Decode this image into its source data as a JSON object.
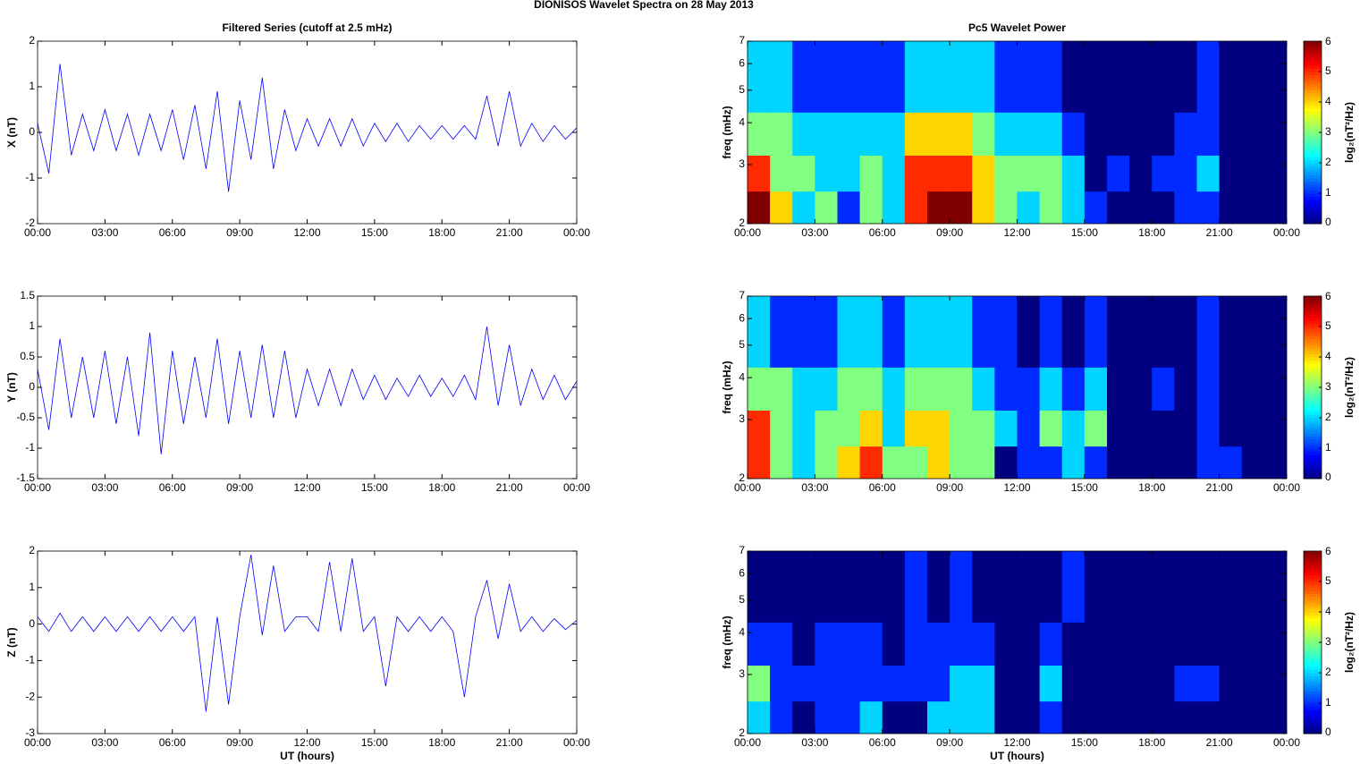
{
  "title": "DIONISOS Wavelet Spectra on 28 May      2013",
  "chart_data": [
    {
      "type": "line",
      "title": "Filtered Series (cutoff at 2.5 mHz)",
      "ylabel": "X (nT)",
      "color": "#0000ff",
      "x": [
        0,
        0.5,
        1,
        1.5,
        2,
        2.5,
        3,
        3.5,
        4,
        4.5,
        5,
        5.5,
        6,
        6.5,
        7,
        7.5,
        8,
        8.5,
        9,
        9.5,
        10,
        10.5,
        11,
        11.5,
        12,
        12.5,
        13,
        13.5,
        14,
        14.5,
        15,
        15.5,
        16,
        16.5,
        17,
        17.5,
        18,
        18.5,
        19,
        19.5,
        20,
        20.5,
        21,
        21.5,
        22,
        22.5,
        23,
        23.5,
        24
      ],
      "values": [
        0.2,
        -0.9,
        1.5,
        -0.5,
        0.4,
        -0.4,
        0.5,
        -0.4,
        0.4,
        -0.5,
        0.4,
        -0.4,
        0.5,
        -0.6,
        0.6,
        -0.8,
        0.9,
        -1.3,
        0.7,
        -0.6,
        1.2,
        -0.8,
        0.5,
        -0.4,
        0.3,
        -0.3,
        0.3,
        -0.3,
        0.3,
        -0.3,
        0.2,
        -0.2,
        0.2,
        -0.2,
        0.15,
        -0.15,
        0.15,
        -0.15,
        0.15,
        -0.15,
        0.8,
        -0.3,
        0.9,
        -0.3,
        0.2,
        -0.2,
        0.15,
        -0.15,
        0.1
      ],
      "xlim": [
        0,
        24
      ],
      "xticks": [
        {
          "value": 0,
          "label": "00:00"
        },
        {
          "value": 3,
          "label": "03:00"
        },
        {
          "value": 6,
          "label": "06:00"
        },
        {
          "value": 9,
          "label": "09:00"
        },
        {
          "value": 12,
          "label": "12:00"
        },
        {
          "value": 15,
          "label": "15:00"
        },
        {
          "value": 18,
          "label": "18:00"
        },
        {
          "value": 21,
          "label": "21:00"
        },
        {
          "value": 24,
          "label": "00:00"
        }
      ],
      "ylim": [
        -2,
        2
      ],
      "yticks": [
        -2,
        -1,
        0,
        1,
        2
      ]
    },
    {
      "type": "line",
      "ylabel": "Y (nT)",
      "color": "#0000ff",
      "x": [
        0,
        0.5,
        1,
        1.5,
        2,
        2.5,
        3,
        3.5,
        4,
        4.5,
        5,
        5.5,
        6,
        6.5,
        7,
        7.5,
        8,
        8.5,
        9,
        9.5,
        10,
        10.5,
        11,
        11.5,
        12,
        12.5,
        13,
        13.5,
        14,
        14.5,
        15,
        15.5,
        16,
        16.5,
        17,
        17.5,
        18,
        18.5,
        19,
        19.5,
        20,
        20.5,
        21,
        21.5,
        22,
        22.5,
        23,
        23.5,
        24
      ],
      "values": [
        0.3,
        -0.7,
        0.8,
        -0.5,
        0.5,
        -0.5,
        0.6,
        -0.6,
        0.5,
        -0.8,
        0.9,
        -1.1,
        0.6,
        -0.6,
        0.5,
        -0.5,
        0.8,
        -0.6,
        0.6,
        -0.5,
        0.7,
        -0.5,
        0.6,
        -0.5,
        0.3,
        -0.3,
        0.3,
        -0.3,
        0.3,
        -0.2,
        0.2,
        -0.2,
        0.15,
        -0.15,
        0.2,
        -0.15,
        0.15,
        -0.15,
        0.2,
        -0.2,
        1.0,
        -0.3,
        0.7,
        -0.3,
        0.3,
        -0.2,
        0.2,
        -0.2,
        0.1
      ],
      "xlim": [
        0,
        24
      ],
      "xticks": [
        {
          "value": 0,
          "label": "00:00"
        },
        {
          "value": 3,
          "label": "03:00"
        },
        {
          "value": 6,
          "label": "06:00"
        },
        {
          "value": 9,
          "label": "09:00"
        },
        {
          "value": 12,
          "label": "12:00"
        },
        {
          "value": 15,
          "label": "15:00"
        },
        {
          "value": 18,
          "label": "18:00"
        },
        {
          "value": 21,
          "label": "21:00"
        },
        {
          "value": 24,
          "label": "00:00"
        }
      ],
      "ylim": [
        -1.5,
        1.5
      ],
      "yticks": [
        -1.5,
        -1,
        -0.5,
        0,
        0.5,
        1,
        1.5
      ]
    },
    {
      "type": "line",
      "ylabel": "Z (nT)",
      "xlabel": "UT (hours)",
      "color": "#0000ff",
      "x": [
        0,
        0.5,
        1,
        1.5,
        2,
        2.5,
        3,
        3.5,
        4,
        4.5,
        5,
        5.5,
        6,
        6.5,
        7,
        7.5,
        8,
        8.5,
        9,
        9.5,
        10,
        10.5,
        11,
        11.5,
        12,
        12.5,
        13,
        13.5,
        14,
        14.5,
        15,
        15.5,
        16,
        16.5,
        17,
        17.5,
        18,
        18.5,
        19,
        19.5,
        20,
        20.5,
        21,
        21.5,
        22,
        22.5,
        23,
        23.5,
        24
      ],
      "values": [
        0.2,
        -0.2,
        0.3,
        -0.2,
        0.2,
        -0.2,
        0.2,
        -0.2,
        0.2,
        -0.2,
        0.2,
        -0.2,
        0.2,
        -0.2,
        0.2,
        -2.4,
        0.2,
        -2.2,
        0.2,
        1.9,
        -0.3,
        1.6,
        -0.2,
        0.2,
        0.2,
        -0.2,
        1.7,
        -0.2,
        1.8,
        -0.2,
        0.2,
        -1.7,
        0.2,
        -0.2,
        0.2,
        -0.2,
        0.2,
        -0.2,
        -2.0,
        0.2,
        1.2,
        -0.4,
        1.1,
        -0.2,
        0.2,
        -0.2,
        0.15,
        -0.15,
        0.1
      ],
      "xlim": [
        0,
        24
      ],
      "xticks": [
        {
          "value": 0,
          "label": "00:00"
        },
        {
          "value": 3,
          "label": "03:00"
        },
        {
          "value": 6,
          "label": "06:00"
        },
        {
          "value": 9,
          "label": "09:00"
        },
        {
          "value": 12,
          "label": "12:00"
        },
        {
          "value": 15,
          "label": "15:00"
        },
        {
          "value": 18,
          "label": "18:00"
        },
        {
          "value": 21,
          "label": "21:00"
        },
        {
          "value": 24,
          "label": "00:00"
        }
      ],
      "ylim": [
        -3,
        2
      ],
      "yticks": [
        -3,
        -2,
        -1,
        0,
        1,
        2
      ]
    },
    {
      "type": "heatmap",
      "title": "Pc5 Wavelet Power",
      "ylabel": "freq (mHz)",
      "colormap": "jet",
      "yscale": "log",
      "colorbar_label": "log₂(nT²/Hz)",
      "zlim": [
        0,
        6
      ],
      "zticks": [
        0,
        1,
        2,
        3,
        4,
        5,
        6
      ],
      "xbins": [
        0,
        1,
        2,
        3,
        4,
        5,
        6,
        7,
        8,
        9,
        10,
        11,
        12,
        13,
        14,
        15,
        16,
        17,
        18,
        19,
        20,
        21,
        22,
        23,
        24
      ],
      "ybins": [
        2,
        2.5,
        3.2,
        4.3,
        7
      ],
      "z": [
        [
          6,
          4,
          2,
          3,
          1,
          3,
          2,
          5,
          6,
          6,
          4,
          3,
          2,
          3,
          2,
          1,
          0,
          0,
          0,
          1,
          1,
          0,
          0,
          0
        ],
        [
          5,
          3,
          3,
          2,
          2,
          3,
          2,
          5,
          5,
          5,
          4,
          3,
          3,
          3,
          2,
          0,
          1,
          0,
          1,
          1,
          2,
          0,
          0,
          0
        ],
        [
          3,
          3,
          2,
          2,
          2,
          2,
          2,
          4,
          4,
          4,
          3,
          2,
          2,
          2,
          1,
          0,
          0,
          0,
          0,
          1,
          1,
          0,
          0,
          0
        ],
        [
          2,
          2,
          1,
          1,
          1,
          1,
          1,
          2,
          2,
          2,
          2,
          1,
          1,
          1,
          0,
          0,
          0,
          0,
          0,
          0,
          1,
          0,
          0,
          0
        ]
      ],
      "xlim": [
        0,
        24
      ],
      "xticks": [
        {
          "value": 0,
          "label": "00:00"
        },
        {
          "value": 3,
          "label": "03:00"
        },
        {
          "value": 6,
          "label": "06:00"
        },
        {
          "value": 9,
          "label": "09:00"
        },
        {
          "value": 12,
          "label": "12:00"
        },
        {
          "value": 15,
          "label": "15:00"
        },
        {
          "value": 18,
          "label": "18:00"
        },
        {
          "value": 21,
          "label": "21:00"
        },
        {
          "value": 24,
          "label": "00:00"
        }
      ],
      "ylim": [
        2,
        7
      ],
      "yticks": [
        2,
        3,
        4,
        5,
        6,
        7
      ]
    },
    {
      "type": "heatmap",
      "ylabel": "freq (mHz)",
      "colormap": "jet",
      "yscale": "log",
      "colorbar_label": "log₂(nT²/Hz)",
      "zlim": [
        0,
        6
      ],
      "zticks": [
        0,
        1,
        2,
        3,
        4,
        5,
        6
      ],
      "xbins": [
        0,
        1,
        2,
        3,
        4,
        5,
        6,
        7,
        8,
        9,
        10,
        11,
        12,
        13,
        14,
        15,
        16,
        17,
        18,
        19,
        20,
        21,
        22,
        23,
        24
      ],
      "ybins": [
        2,
        2.5,
        3.2,
        4.3,
        7
      ],
      "z": [
        [
          5,
          3,
          2,
          3,
          4,
          5,
          3,
          3,
          4,
          3,
          3,
          0,
          1,
          1,
          2,
          1,
          0,
          0,
          0,
          0,
          1,
          1,
          0,
          0
        ],
        [
          5,
          3,
          2,
          3,
          3,
          4,
          2,
          4,
          4,
          3,
          3,
          2,
          1,
          3,
          2,
          3,
          0,
          0,
          0,
          0,
          1,
          0,
          0,
          0
        ],
        [
          3,
          3,
          2,
          2,
          3,
          3,
          2,
          3,
          3,
          3,
          2,
          1,
          1,
          2,
          1,
          2,
          0,
          0,
          1,
          0,
          1,
          0,
          0,
          0
        ],
        [
          2,
          1,
          1,
          1,
          2,
          2,
          1,
          2,
          2,
          2,
          1,
          1,
          0,
          1,
          0,
          1,
          0,
          0,
          0,
          0,
          1,
          0,
          0,
          0
        ]
      ],
      "xlim": [
        0,
        24
      ],
      "xticks": [
        {
          "value": 0,
          "label": "00:00"
        },
        {
          "value": 3,
          "label": "03:00"
        },
        {
          "value": 6,
          "label": "06:00"
        },
        {
          "value": 9,
          "label": "09:00"
        },
        {
          "value": 12,
          "label": "12:00"
        },
        {
          "value": 15,
          "label": "15:00"
        },
        {
          "value": 18,
          "label": "18:00"
        },
        {
          "value": 21,
          "label": "21:00"
        },
        {
          "value": 24,
          "label": "00:00"
        }
      ],
      "ylim": [
        2,
        7
      ],
      "yticks": [
        2,
        3,
        4,
        5,
        6,
        7
      ]
    },
    {
      "type": "heatmap",
      "ylabel": "freq (mHz)",
      "xlabel": "UT (hours)",
      "colormap": "jet",
      "yscale": "log",
      "colorbar_label": "log₂(nT²/Hz)",
      "zlim": [
        0,
        6
      ],
      "zticks": [
        0,
        1,
        2,
        3,
        4,
        5,
        6
      ],
      "xbins": [
        0,
        1,
        2,
        3,
        4,
        5,
        6,
        7,
        8,
        9,
        10,
        11,
        12,
        13,
        14,
        15,
        16,
        17,
        18,
        19,
        20,
        21,
        22,
        23,
        24
      ],
      "ybins": [
        2,
        2.5,
        3.2,
        4.3,
        7
      ],
      "z": [
        [
          2,
          1,
          0,
          1,
          1,
          2,
          0,
          0,
          2,
          2,
          2,
          0,
          0,
          1,
          0,
          0,
          0,
          0,
          0,
          0,
          0,
          0,
          0,
          0
        ],
        [
          3,
          1,
          1,
          1,
          1,
          1,
          1,
          1,
          1,
          2,
          2,
          0,
          0,
          2,
          0,
          0,
          0,
          0,
          0,
          1,
          1,
          0,
          0,
          0
        ],
        [
          1,
          1,
          0,
          1,
          1,
          1,
          0,
          1,
          1,
          1,
          1,
          0,
          0,
          1,
          0,
          0,
          0,
          0,
          0,
          0,
          0,
          0,
          0,
          0
        ],
        [
          0,
          0,
          0,
          0,
          0,
          0,
          0,
          1,
          0,
          1,
          0,
          0,
          0,
          0,
          1,
          0,
          0,
          0,
          0,
          0,
          0,
          0,
          0,
          0
        ]
      ],
      "xlim": [
        0,
        24
      ],
      "xticks": [
        {
          "value": 0,
          "label": "00:00"
        },
        {
          "value": 3,
          "label": "03:00"
        },
        {
          "value": 6,
          "label": "06:00"
        },
        {
          "value": 9,
          "label": "09:00"
        },
        {
          "value": 12,
          "label": "12:00"
        },
        {
          "value": 15,
          "label": "15:00"
        },
        {
          "value": 18,
          "label": "18:00"
        },
        {
          "value": 21,
          "label": "21:00"
        },
        {
          "value": 24,
          "label": "00:00"
        }
      ],
      "ylim": [
        2,
        7
      ],
      "yticks": [
        2,
        3,
        4,
        5,
        6,
        7
      ]
    }
  ]
}
